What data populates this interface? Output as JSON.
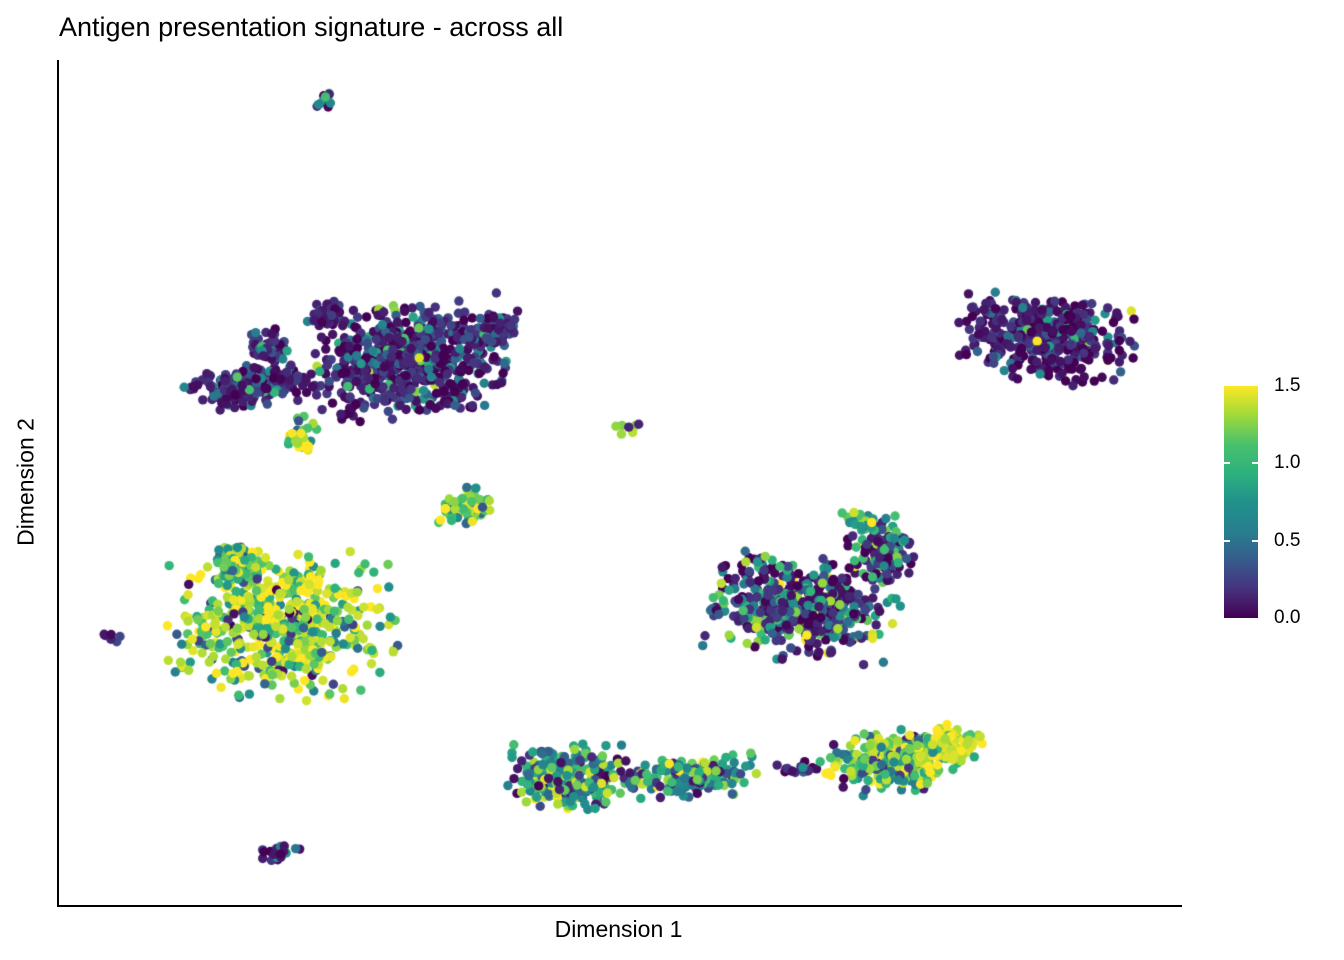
{
  "chart_data": {
    "type": "scatter",
    "title": "Antigen presentation signature - across all",
    "xlabel": "Dimension 1",
    "ylabel": "Dimension 2",
    "background_color": "#ffffff",
    "axis_color": "#000000",
    "point_radius": 4.7,
    "seed": 7,
    "color_scale": {
      "name": "viridis",
      "domain": [
        0,
        1.5
      ],
      "ticks": [
        0.0,
        0.5,
        1.0,
        1.5
      ],
      "tick_labels": [
        "1.5",
        "1.0",
        "0.5",
        "0.0"
      ],
      "anchors": [
        "#440154",
        "#46327e",
        "#365c8d",
        "#277f8e",
        "#21918c",
        "#2db27d",
        "#4ac16d",
        "#a0da39",
        "#fde725"
      ],
      "legend_position": "right"
    },
    "axes": {
      "x_ticks_shown": false,
      "y_ticks_shown": false,
      "grid": false
    },
    "clusters": [
      {
        "name": "top-tiny-cluster",
        "u": 0.236,
        "v": 0.047,
        "su": 0.004,
        "sv": 0.005,
        "rot": 0,
        "n": 10,
        "mix": [
          [
            0.5,
            0.12,
            0.08
          ],
          [
            0.3,
            0.7,
            0.15
          ],
          [
            0.2,
            1.05,
            0.15
          ]
        ]
      },
      {
        "name": "upper-left-main-blob",
        "u": 0.31,
        "v": 0.357,
        "su": 0.04,
        "sv": 0.03,
        "rot": -8,
        "n": 640,
        "mix": [
          [
            0.76,
            0.12,
            0.12
          ],
          [
            0.13,
            0.5,
            0.15
          ],
          [
            0.09,
            0.9,
            0.18
          ],
          [
            0.02,
            1.35,
            0.1
          ]
        ]
      },
      {
        "name": "upper-left-arm",
        "u": 0.17,
        "v": 0.386,
        "su": 0.028,
        "sv": 0.011,
        "rot": -6,
        "n": 190,
        "mix": [
          [
            0.8,
            0.12,
            0.1
          ],
          [
            0.14,
            0.5,
            0.15
          ],
          [
            0.06,
            0.9,
            0.18
          ]
        ]
      },
      {
        "name": "upper-left-knob",
        "u": 0.188,
        "v": 0.341,
        "su": 0.008,
        "sv": 0.01,
        "rot": 0,
        "n": 60,
        "mix": [
          [
            0.75,
            0.12,
            0.1
          ],
          [
            0.25,
            0.6,
            0.2
          ]
        ]
      },
      {
        "name": "upper-left-tail",
        "u": 0.384,
        "v": 0.32,
        "su": 0.013,
        "sv": 0.009,
        "rot": -18,
        "n": 80,
        "mix": [
          [
            0.85,
            0.12,
            0.1
          ],
          [
            0.15,
            0.5,
            0.2
          ]
        ]
      },
      {
        "name": "upper-left-top-bump",
        "u": 0.239,
        "v": 0.302,
        "su": 0.008,
        "sv": 0.008,
        "rot": 0,
        "n": 45,
        "mix": [
          [
            0.8,
            0.12,
            0.1
          ],
          [
            0.2,
            0.55,
            0.2
          ]
        ]
      },
      {
        "name": "small-yellow-dots",
        "u": 0.216,
        "v": 0.446,
        "su": 0.006,
        "sv": 0.012,
        "rot": 0,
        "n": 26,
        "mix": [
          [
            0.55,
            1.3,
            0.15
          ],
          [
            0.3,
            0.9,
            0.15
          ],
          [
            0.15,
            0.35,
            0.2
          ]
        ]
      },
      {
        "name": "right-upper-cluster",
        "u": 0.878,
        "v": 0.329,
        "su": 0.0365,
        "sv": 0.023,
        "rot": 6,
        "n": 430,
        "mix": [
          [
            0.84,
            0.1,
            0.1
          ],
          [
            0.1,
            0.5,
            0.18
          ],
          [
            0.05,
            0.9,
            0.2
          ],
          [
            0.01,
            1.4,
            0.08
          ]
        ]
      },
      {
        "name": "center-tiny-pair",
        "u": 0.505,
        "v": 0.434,
        "su": 0.007,
        "sv": 0.004,
        "rot": 0,
        "n": 7,
        "mix": [
          [
            0.5,
            1.3,
            0.12
          ],
          [
            0.5,
            0.15,
            0.1
          ]
        ]
      },
      {
        "name": "center-small-cluster",
        "u": 0.364,
        "v": 0.529,
        "su": 0.0125,
        "sv": 0.01,
        "rot": -14,
        "n": 55,
        "mix": [
          [
            0.45,
            1.3,
            0.15
          ],
          [
            0.3,
            0.9,
            0.15
          ],
          [
            0.25,
            0.5,
            0.15
          ]
        ]
      },
      {
        "name": "yellow-main-cluster",
        "u": 0.199,
        "v": 0.669,
        "su": 0.045,
        "sv": 0.039,
        "rot": 0,
        "n": 560,
        "mix": [
          [
            0.55,
            1.42,
            0.1
          ],
          [
            0.25,
            1.1,
            0.15
          ],
          [
            0.12,
            0.7,
            0.2
          ],
          [
            0.08,
            0.2,
            0.15
          ]
        ]
      },
      {
        "name": "yellow-top-knob",
        "u": 0.16,
        "v": 0.6,
        "su": 0.011,
        "sv": 0.0115,
        "rot": 0,
        "n": 110,
        "mix": [
          [
            0.4,
            1.25,
            0.15
          ],
          [
            0.35,
            0.85,
            0.15
          ],
          [
            0.25,
            0.45,
            0.2
          ]
        ]
      },
      {
        "name": "far-left-pair",
        "u": 0.045,
        "v": 0.682,
        "su": 0.005,
        "sv": 0.003,
        "rot": 0,
        "n": 6,
        "mix": [
          [
            0.6,
            0.15,
            0.1
          ],
          [
            0.4,
            1.2,
            0.18
          ]
        ]
      },
      {
        "name": "mid-right-main",
        "u": 0.662,
        "v": 0.648,
        "su": 0.039,
        "sv": 0.028,
        "rot": 4,
        "n": 500,
        "mix": [
          [
            0.58,
            0.12,
            0.12
          ],
          [
            0.18,
            0.5,
            0.18
          ],
          [
            0.16,
            0.9,
            0.2
          ],
          [
            0.08,
            1.35,
            0.12
          ]
        ]
      },
      {
        "name": "mid-right-appendage",
        "u": 0.731,
        "v": 0.582,
        "su": 0.0134,
        "sv": 0.019,
        "rot": 0,
        "n": 130,
        "mix": [
          [
            0.68,
            0.12,
            0.1
          ],
          [
            0.16,
            0.6,
            0.2
          ],
          [
            0.16,
            1.1,
            0.22
          ]
        ]
      },
      {
        "name": "mid-right-top-dots",
        "u": 0.713,
        "v": 0.549,
        "su": 0.008,
        "sv": 0.009,
        "rot": 0,
        "n": 24,
        "mix": [
          [
            0.55,
            1.25,
            0.15
          ],
          [
            0.45,
            0.85,
            0.15
          ]
        ]
      },
      {
        "name": "bottom-left-blob",
        "u": 0.453,
        "v": 0.85,
        "su": 0.024,
        "sv": 0.018,
        "rot": 0,
        "n": 260,
        "mix": [
          [
            0.28,
            1.3,
            0.15
          ],
          [
            0.27,
            0.9,
            0.15
          ],
          [
            0.25,
            0.55,
            0.15
          ],
          [
            0.2,
            0.15,
            0.12
          ]
        ]
      },
      {
        "name": "bottom-middle-strip",
        "u": 0.565,
        "v": 0.847,
        "su": 0.028,
        "sv": 0.011,
        "rot": -2,
        "n": 160,
        "mix": [
          [
            0.3,
            1.25,
            0.15
          ],
          [
            0.3,
            0.85,
            0.15
          ],
          [
            0.25,
            0.5,
            0.15
          ],
          [
            0.15,
            0.15,
            0.1
          ]
        ]
      },
      {
        "name": "bottom-dark-dots",
        "u": 0.657,
        "v": 0.84,
        "su": 0.009,
        "sv": 0.005,
        "rot": 0,
        "n": 16,
        "mix": [
          [
            0.85,
            0.1,
            0.08
          ],
          [
            0.15,
            0.6,
            0.2
          ]
        ]
      },
      {
        "name": "bottom-right-mass",
        "u": 0.744,
        "v": 0.831,
        "su": 0.03,
        "sv": 0.0165,
        "rot": -7,
        "n": 300,
        "mix": [
          [
            0.45,
            1.35,
            0.12
          ],
          [
            0.25,
            1.0,
            0.15
          ],
          [
            0.2,
            0.6,
            0.18
          ],
          [
            0.1,
            0.15,
            0.12
          ]
        ]
      },
      {
        "name": "bottom-right-yellow-tip",
        "u": 0.793,
        "v": 0.812,
        "su": 0.013,
        "sv": 0.01,
        "rot": -10,
        "n": 90,
        "mix": [
          [
            0.8,
            1.42,
            0.08
          ],
          [
            0.2,
            1.0,
            0.15
          ]
        ]
      },
      {
        "name": "bottom-small-streak",
        "u": 0.195,
        "v": 0.938,
        "su": 0.009,
        "sv": 0.004,
        "rot": -10,
        "n": 24,
        "mix": [
          [
            0.7,
            0.08,
            0.06
          ],
          [
            0.3,
            0.7,
            0.25
          ]
        ]
      }
    ]
  }
}
